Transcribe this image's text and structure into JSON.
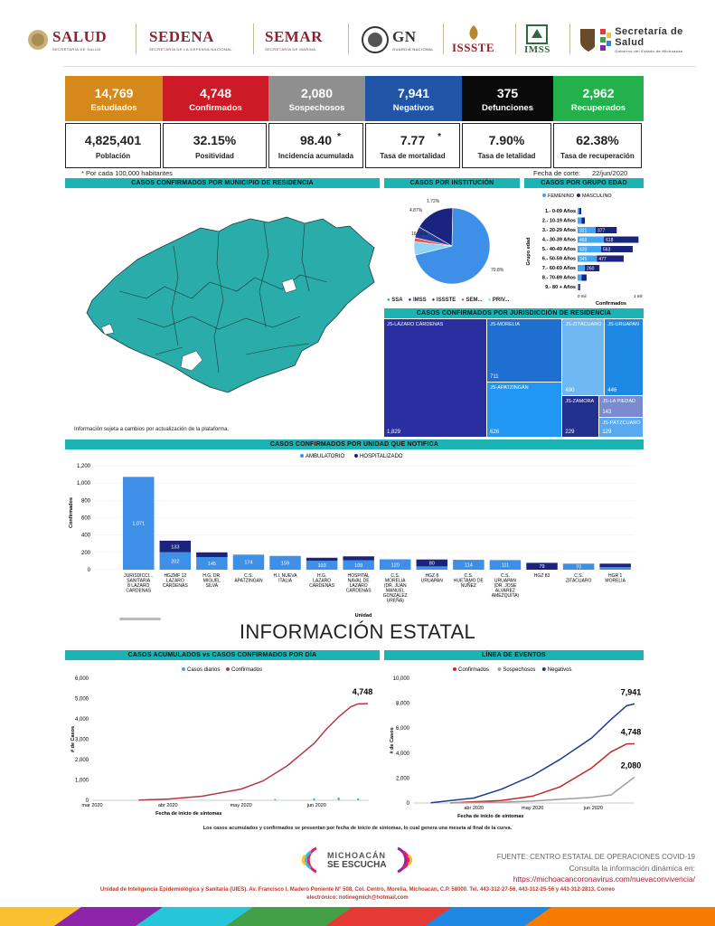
{
  "header": {
    "logos": [
      {
        "name": "SALUD",
        "sub": "SECRETARÍA DE SALUD"
      },
      {
        "name": "SEDENA",
        "sub": "SECRETARÍA DE LA DEFENSA NACIONAL"
      },
      {
        "name": "SEMAR",
        "sub": "SECRETARÍA DE MARINA"
      },
      {
        "name": "GN",
        "sub": "GUARDIA NACIONAL"
      },
      {
        "name": "ISSSTE",
        "sub": ""
      },
      {
        "name": "IMSS",
        "sub": ""
      },
      {
        "name": "Secretaría de Salud",
        "sub": "Gobierno del Estado de Michoacán"
      }
    ]
  },
  "kpis": [
    {
      "value": "14,769",
      "label": "Estudiados",
      "color": "#d4891a"
    },
    {
      "value": "4,748",
      "label": "Confirmados",
      "color": "#cc1b26"
    },
    {
      "value": "2,080",
      "label": "Sospechosos",
      "color": "#8f8f8f"
    },
    {
      "value": "7,941",
      "label": "Negativos",
      "color": "#1f54a6"
    },
    {
      "value": "375",
      "label": "Defunciones",
      "color": "#0a0a0a"
    },
    {
      "value": "2,962",
      "label": "Recuperados",
      "color": "#23b14d"
    }
  ],
  "kpis2": [
    {
      "value": "4,825,401",
      "label": "Población",
      "star": ""
    },
    {
      "value": "32.15%",
      "label": "Positividad",
      "star": ""
    },
    {
      "value": "98.40",
      "label": "Incidencia acumulada",
      "star": "*"
    },
    {
      "value": "7.77",
      "label": "Tasa de mortalidad",
      "star": "*"
    },
    {
      "value": "7.90%",
      "label": "Tasa de letalidad",
      "star": ""
    },
    {
      "value": "62.38%",
      "label": "Tasa de recuperación",
      "star": ""
    }
  ],
  "notes": {
    "per_100k": "* Por cada 100,000 habitantes",
    "cutoff_label": "Fecha de corte:",
    "cutoff_date": "22/jun/2020",
    "map_note": "Información sujeta a cambios por actualización de la plataforma.",
    "bottom_note": "Los casos acumulados y confirmados se presentan por fecha de inicio de síntomas, lo cual genera una meseta al final de la curva."
  },
  "section_titles": {
    "map": "CASOS CONFIRMADOS POR MUNICIPIO DE RESIDENCIA",
    "institution": "CASOS POR INSTITUCIÓN",
    "age": "CASOS POR GRUPO EDAD",
    "jurisdiction": "CASOS CONFIRMADOS POR JURISDICCIÓN DE RESIDENCIA",
    "unit": "CASOS CONFIRMADOS POR UNIDAD QUE NOTIFICA",
    "state": "INFORMACIÓN ESTATAL",
    "cumulative": "CASOS ACUMULADOS vs CASOS CONFIRMADOS POR DÍA",
    "timeline": "LÍNEA DE EVENTOS"
  },
  "colors": {
    "teal": "#1bb3b3",
    "map_fill": "#2aacaa",
    "dark_navy": "#1a237e",
    "blue": "#1e74d6",
    "light_blue": "#42a5f5",
    "red": "#b03a48"
  },
  "chart_data": [
    {
      "type": "pie",
      "title": "CASOS POR INSTITUCIÓN",
      "labels": [
        "SSA",
        "IMSS",
        "ISSSTE",
        "SEM...",
        "PRIV..."
      ],
      "values": [
        70.8,
        16.95,
        4.87,
        1.72,
        5.66
      ],
      "value_labels": [
        "70.8%",
        "16.95%",
        "4.87%",
        "1.72%",
        ""
      ],
      "colors": [
        "#3d8fe8",
        "#1a237e",
        "#253b9c",
        "#ef5350",
        "#8fd3f5"
      ]
    },
    {
      "type": "bar",
      "title": "CASOS POR GRUPO EDAD",
      "orientation": "horizontal",
      "ylabel": "Grupo edad",
      "xlabel": "Confirmados",
      "xticks": [
        "0 mil",
        "1 mil"
      ],
      "legend": [
        "FEMENINO",
        "MASCULINO"
      ],
      "categories": [
        "1.- 0-09 Años",
        "2.- 10-19 Años",
        "3.- 20-29 Años",
        "4.- 30-39 Años",
        "5.- 40-49 Años",
        "6.- 50-59 Años",
        "7.- 60-69 Años",
        "8.- 70-89 Años",
        "9.- 80 + Años"
      ],
      "series": [
        {
          "name": "FEMENINO",
          "values": [
            30,
            70,
            321,
            469,
            420,
            345,
            130,
            70,
            20
          ],
          "labels": [
            "",
            "",
            "321",
            "469",
            "420",
            "345",
            "",
            "",
            ""
          ]
        },
        {
          "name": "MASCULINO",
          "values": [
            35,
            60,
            377,
            618,
            563,
            477,
            260,
            90,
            25
          ],
          "labels": [
            "",
            "",
            "377",
            "618",
            "563",
            "477",
            "260",
            "",
            ""
          ]
        }
      ]
    },
    {
      "type": "treemap",
      "title": "CASOS CONFIRMADOS POR JURISDICCIÓN DE RESIDENCIA",
      "labels": [
        "JS-LÁZARO CÁRDENAS",
        "JS-MORELIA",
        "JS-APATZINGÁN",
        "JS-ZITÁCUARO",
        "JS-URUAPAN",
        "JS-ZAMORA",
        "JS-LA PIEDAD",
        "JS-PÁTZCUARO"
      ],
      "values": [
        1829,
        711,
        626,
        490,
        446,
        229,
        143,
        129
      ]
    },
    {
      "type": "bar",
      "stacked": true,
      "title": "CASOS CONFIRMADOS POR UNIDAD QUE NOTIFICA",
      "xlabel": "Unidad",
      "ylabel": "Confirmados",
      "ylim": [
        0,
        1200
      ],
      "yticks": [
        0,
        200,
        400,
        600,
        800,
        1000,
        1200
      ],
      "legend": [
        "AMBULATORIO",
        "HOSPITALIZADO"
      ],
      "categories": [
        "JURISDICCI... SANITARIA 8 LAZARO CARDENAS",
        "HGZMF 12 LAZARO CARDENAS",
        "H.G. DR. MIGUEL SILVA",
        "C.S. APATZINGAN",
        "H.I. NUEVA ITALIA",
        "H.G. LAZARO CARDENAS",
        "HOSPITAL NAVAL DE LAZARO CARDENAS",
        "C.S. MORELIA (DR. JUAN MANUEL GONZALEZ UREÑA)",
        "HGZ 8 URUAPAN",
        "C.S. HUETAMO DE NUÑEZ",
        "C.S. URUAPAN (DR. JOSE ALVAREZ AMEZQUITA)",
        "HGZ 83",
        "C.S. ZITACUARO",
        "HGR 1 MORELIA"
      ],
      "series": [
        {
          "name": "AMBULATORIO",
          "values": [
            1071,
            202,
            145,
            174,
            159,
            103,
            109,
            120,
            38,
            114,
            111,
            0,
            70,
            30
          ]
        },
        {
          "name": "HOSPITALIZADO",
          "values": [
            0,
            133,
            55,
            0,
            0,
            35,
            45,
            0,
            80,
            0,
            0,
            79,
            0,
            40
          ]
        }
      ],
      "value_labels": {
        "AMBULATORIO": [
          "1,071",
          "202",
          "145",
          "174",
          "159",
          "103",
          "109",
          "120",
          "",
          "114",
          "111",
          "",
          "70",
          ""
        ],
        "HOSPITALIZADO": [
          "",
          "133",
          "",
          "",
          "",
          "",
          "",
          "",
          "80",
          "",
          "",
          "79",
          "",
          ""
        ]
      }
    },
    {
      "type": "line",
      "title": "CASOS ACUMULADOS vs CASOS CONFIRMADOS POR DÍA",
      "xlabel": "Fecha de inicio de síntomas",
      "ylabel": "# de Casos",
      "ylim": [
        0,
        6000
      ],
      "yticks": [
        0,
        1000,
        2000,
        3000,
        4000,
        5000,
        6000
      ],
      "xticks": [
        "mar 2020",
        "abr 2020",
        "may 2020",
        "jun 2020"
      ],
      "xrange": [
        "2020-03-01",
        "2020-06-22"
      ],
      "legend": [
        "Casos diarios",
        "Confirmados"
      ],
      "end_label": "4,748",
      "series": [
        {
          "name": "Confirmados",
          "x": [
            "2020-03-20",
            "2020-04-01",
            "2020-04-15",
            "2020-05-01",
            "2020-05-10",
            "2020-05-20",
            "2020-05-31",
            "2020-06-05",
            "2020-06-10",
            "2020-06-15",
            "2020-06-18",
            "2020-06-22"
          ],
          "y": [
            10,
            60,
            200,
            550,
            950,
            1700,
            2800,
            3500,
            4100,
            4600,
            4740,
            4748
          ]
        },
        {
          "name": "Casos diarios",
          "x": [
            "2020-04-01",
            "2020-04-15",
            "2020-05-01",
            "2020-05-15",
            "2020-05-31",
            "2020-06-10",
            "2020-06-18",
            "2020-06-22"
          ],
          "y": [
            5,
            15,
            30,
            60,
            100,
            140,
            90,
            10
          ]
        }
      ]
    },
    {
      "type": "line",
      "title": "LÍNEA DE EVENTOS",
      "xlabel": "Fecha de inicio de síntomas",
      "ylabel": "# de Casos",
      "ylim": [
        0,
        10000
      ],
      "yticks": [
        0,
        2000,
        4000,
        6000,
        8000,
        10000
      ],
      "xticks": [
        "abr 2020",
        "may 2020",
        "jun 2020"
      ],
      "xrange": [
        "2020-03-01",
        "2020-06-22"
      ],
      "legend": [
        "Confirmados",
        "Sospechosos",
        "Negativos"
      ],
      "end_labels": [
        "7,941",
        "4,748",
        "2,080"
      ],
      "series": [
        {
          "name": "Negativos",
          "x": [
            "2020-03-10",
            "2020-04-01",
            "2020-04-15",
            "2020-05-01",
            "2020-05-15",
            "2020-05-31",
            "2020-06-10",
            "2020-06-18",
            "2020-06-22"
          ],
          "y": [
            20,
            400,
            1100,
            2200,
            3500,
            5200,
            6700,
            7800,
            7941
          ]
        },
        {
          "name": "Confirmados",
          "x": [
            "2020-03-20",
            "2020-04-15",
            "2020-05-01",
            "2020-05-15",
            "2020-05-31",
            "2020-06-10",
            "2020-06-18",
            "2020-06-22"
          ],
          "y": [
            10,
            200,
            550,
            1300,
            2800,
            4100,
            4740,
            4748
          ]
        },
        {
          "name": "Sospechosos",
          "x": [
            "2020-03-20",
            "2020-04-15",
            "2020-05-01",
            "2020-05-15",
            "2020-05-31",
            "2020-06-10",
            "2020-06-18",
            "2020-06-22"
          ],
          "y": [
            5,
            60,
            150,
            300,
            450,
            650,
            1600,
            2080
          ]
        }
      ]
    }
  ],
  "footer": {
    "brand_line1": "MICHOACÁN",
    "brand_line2": "SE ESCUCHA",
    "source": "FUENTE: CENTRO ESTATAL DE OPERACIONES COVID-19",
    "dynamic": "Consulta la información dinámica en:",
    "url": "https://michoacancoronavirus.com/nuevaconvivencia/",
    "address": "Unidad de Inteligencia Epidemiológica y Sanitaria (UIES). Av. Francisco I. Madero Poniente N° 508, Col. Centro, Morelia, Michoacán, C.P. 58000. Tel. 443-312-27-56, 443-312-25-56 y 443-312-2813, Correo",
    "email": "electrónico: notinegmich@hotmail.com"
  }
}
